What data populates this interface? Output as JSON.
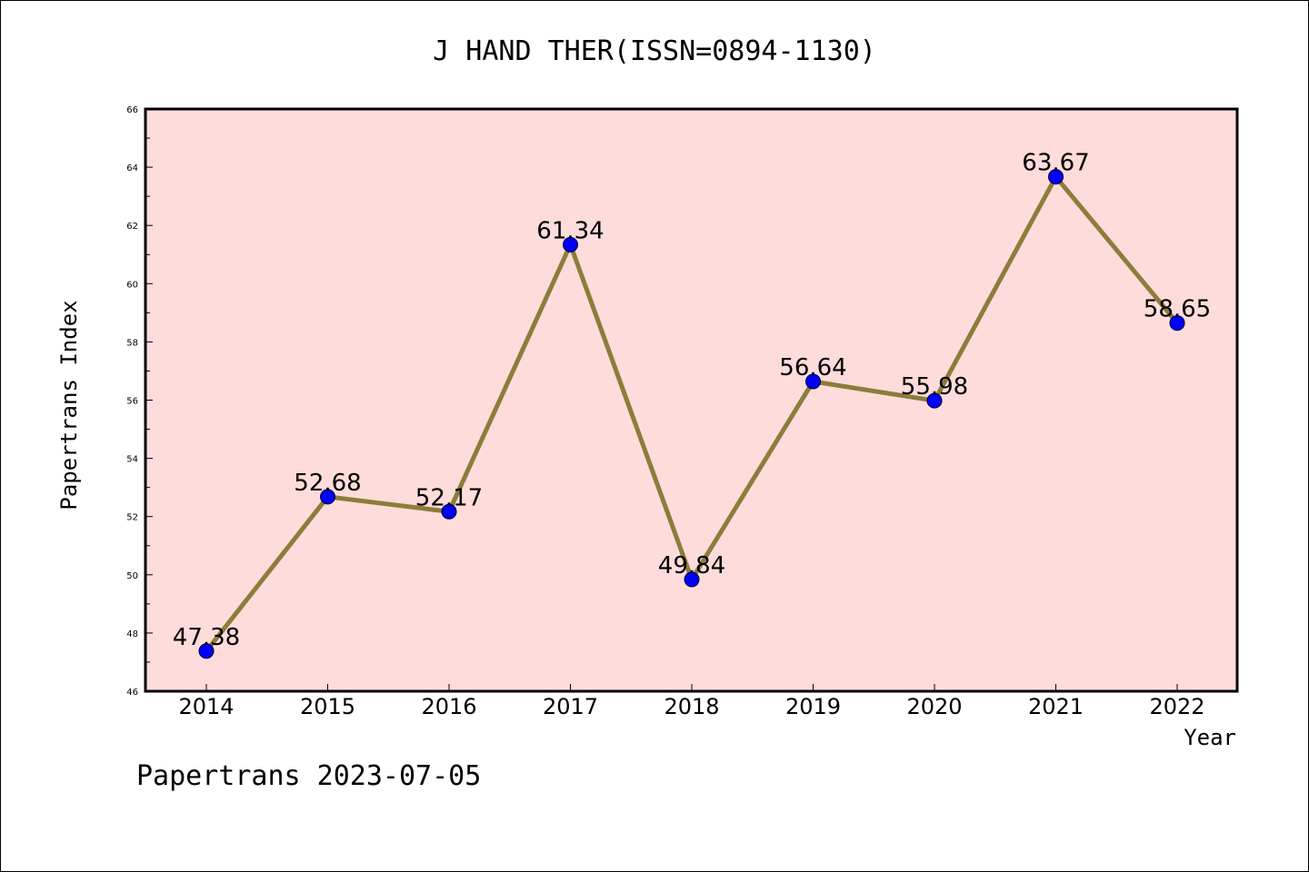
{
  "chart_data": {
    "type": "line",
    "title": "J HAND THER(ISSN=0894-1130)",
    "xlabel": "Year",
    "ylabel": "Papertrans Index",
    "categories": [
      "2014",
      "2015",
      "2016",
      "2017",
      "2018",
      "2019",
      "2020",
      "2021",
      "2022"
    ],
    "series": [
      {
        "values": [
          47.38,
          52.68,
          52.17,
          61.34,
          49.84,
          56.64,
          55.98,
          63.67,
          58.65
        ],
        "data_labels": [
          "47.38",
          "52.68",
          "52.17",
          "61.34",
          "49.84",
          "56.64",
          "55.98",
          "63.67",
          "58.65"
        ]
      }
    ],
    "ylim": [
      46,
      66
    ],
    "yticks": [
      "46",
      "48",
      "50",
      "52",
      "54",
      "56",
      "58",
      "60",
      "62",
      "64",
      "66"
    ],
    "grid": false,
    "colors": {
      "plot_background": "#ffdcdc",
      "line": "#8b7d3a",
      "marker": "#0000ff"
    }
  },
  "footer": "Papertrans 2023-07-05"
}
